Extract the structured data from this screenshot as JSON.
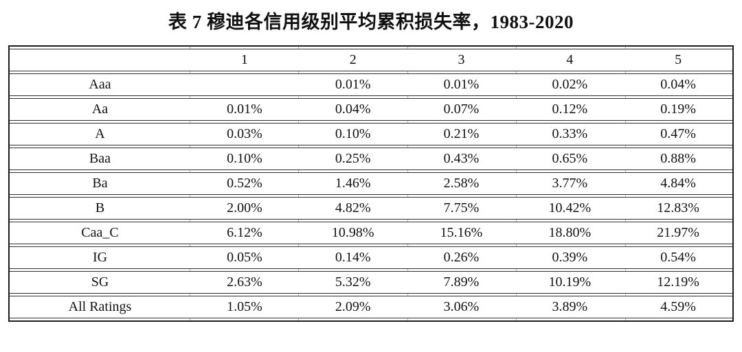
{
  "title": "表 7  穆迪各信用级别平均累积损失率，1983-2020",
  "table": {
    "columns": [
      "",
      "1",
      "2",
      "3",
      "4",
      "5"
    ],
    "rows": [
      {
        "label": "Aaa",
        "values": [
          "",
          "0.01%",
          "0.01%",
          "0.02%",
          "0.04%"
        ]
      },
      {
        "label": "Aa",
        "values": [
          "0.01%",
          "0.04%",
          "0.07%",
          "0.12%",
          "0.19%"
        ]
      },
      {
        "label": "A",
        "values": [
          "0.03%",
          "0.10%",
          "0.21%",
          "0.33%",
          "0.47%"
        ]
      },
      {
        "label": "Baa",
        "values": [
          "0.10%",
          "0.25%",
          "0.43%",
          "0.65%",
          "0.88%"
        ]
      },
      {
        "label": "Ba",
        "values": [
          "0.52%",
          "1.46%",
          "2.58%",
          "3.77%",
          "4.84%"
        ]
      },
      {
        "label": "B",
        "values": [
          "2.00%",
          "4.82%",
          "7.75%",
          "10.42%",
          "12.83%"
        ]
      },
      {
        "label": "Caa_C",
        "values": [
          "6.12%",
          "10.98%",
          "15.16%",
          "18.80%",
          "21.97%"
        ]
      },
      {
        "label": "IG",
        "values": [
          "0.05%",
          "0.14%",
          "0.26%",
          "0.39%",
          "0.54%"
        ]
      },
      {
        "label": "SG",
        "values": [
          "2.63%",
          "5.32%",
          "7.89%",
          "10.19%",
          "12.19%"
        ]
      },
      {
        "label": "All Ratings",
        "values": [
          "1.05%",
          "2.09%",
          "3.06%",
          "3.89%",
          "4.59%"
        ]
      }
    ]
  }
}
